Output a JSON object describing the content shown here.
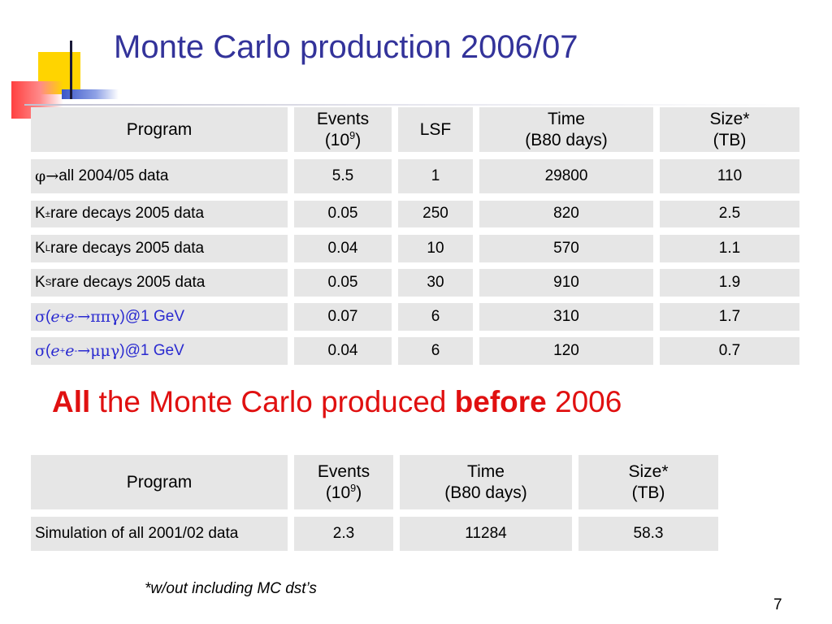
{
  "title": "Monte Carlo production 2006/07",
  "table1": {
    "headers": {
      "program": "Program",
      "events_1": "Events",
      "events_2_base": "(10",
      "events_2_exp": "9",
      "events_2_end": ")",
      "lsf": "LSF",
      "time_1": "Time",
      "time_2": "(B80 days)",
      "size_1": "Size*",
      "size_2": "(TB)"
    },
    "rows": [
      {
        "program_sym1": "φ",
        "program_arrow": " → ",
        "program_text": "all  2004/05 data",
        "events": "5.5",
        "lsf": "1",
        "time": "29800",
        "size": "110"
      },
      {
        "program_k": "K",
        "program_sup": "±",
        "program_text": " rare decays 2005 data",
        "events": "0.05",
        "lsf": "250",
        "time": "820",
        "size": "2.5"
      },
      {
        "program_k": "K",
        "program_sub": "L",
        "program_text": " rare decays 2005 data",
        "events": "0.04",
        "lsf": "10",
        "time": "570",
        "size": "1.1"
      },
      {
        "program_k": "K",
        "program_sub": "S",
        "program_text": " rare decays 2005 data",
        "events": "0.05",
        "lsf": "30",
        "time": "910",
        "size": "1.9"
      },
      {
        "sigma": "σ",
        "open": "(",
        "e1": "e",
        "e1_sup": "+",
        "e2": "e",
        "e2_sup": "-",
        "arrow": " →",
        "final": "ππγ",
        "close": ")",
        "energy": " @1 GeV",
        "events": "0.07",
        "lsf": "6",
        "time": "310",
        "size": "1.7"
      },
      {
        "sigma": "σ",
        "open": "(",
        "e1": "e",
        "e1_sup": "+",
        "e2": "e",
        "e2_sup": "-",
        "arrow": " →",
        "final": "μμγ",
        "close": ")",
        "energy": " @1 GeV",
        "events": "0.04",
        "lsf": "6",
        "time": "120",
        "size": "0.7"
      }
    ]
  },
  "headline": {
    "bold_1": "All",
    "text_1": " the Monte Carlo produced ",
    "bold_2": "before",
    "text_2": " 2006"
  },
  "table2": {
    "headers": {
      "program": "Program",
      "events_1": "Events",
      "events_2_base": "(10",
      "events_2_exp": "9",
      "events_2_end": ")",
      "time_1": "Time",
      "time_2": "(B80 days)",
      "size_1": "Size*",
      "size_2": "(TB)"
    },
    "rows": [
      {
        "program": "Simulation of all 2001/02 data",
        "events": "2.3",
        "time": "11284",
        "size": "58.3"
      }
    ]
  },
  "footnote": "*w/out including MC dst’s",
  "page_number": "7",
  "colors": {
    "title": "#33339a",
    "headline": "#e01010",
    "cell_bg": "#e6e6e6",
    "link_blue": "#2a2ad0"
  }
}
